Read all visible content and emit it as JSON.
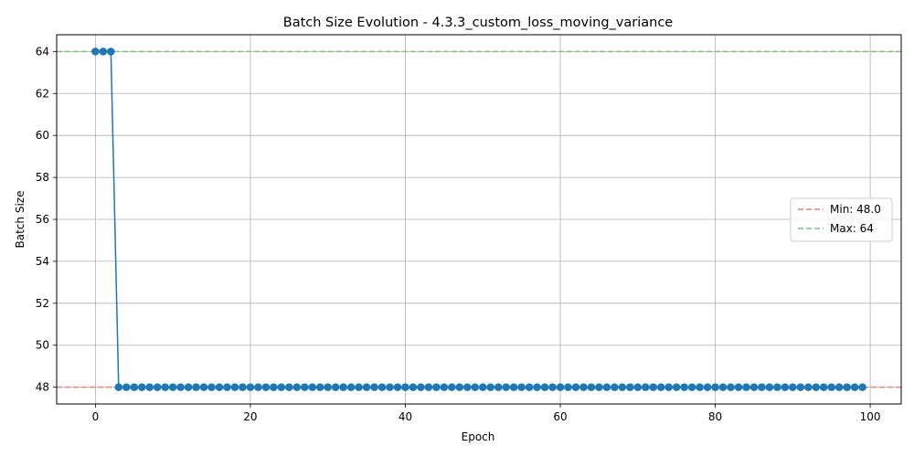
{
  "chart_data": {
    "type": "line",
    "title": "Batch Size Evolution - 4.3.3_custom_loss_moving_variance",
    "xlabel": "Epoch",
    "ylabel": "Batch Size",
    "xlim": [
      -5,
      104
    ],
    "ylim": [
      47.2,
      64.8
    ],
    "xticks": [
      0,
      20,
      40,
      60,
      80,
      100
    ],
    "yticks": [
      48,
      50,
      52,
      54,
      56,
      58,
      60,
      62,
      64
    ],
    "grid": true,
    "legend_position": "center-right",
    "series": [
      {
        "color": "#1f77b4",
        "x": [
          0,
          1,
          2,
          3,
          4,
          5,
          6,
          7,
          8,
          9,
          10,
          11,
          12,
          13,
          14,
          15,
          16,
          17,
          18,
          19,
          20,
          21,
          22,
          23,
          24,
          25,
          26,
          27,
          28,
          29,
          30,
          31,
          32,
          33,
          34,
          35,
          36,
          37,
          38,
          39,
          40,
          41,
          42,
          43,
          44,
          45,
          46,
          47,
          48,
          49,
          50,
          51,
          52,
          53,
          54,
          55,
          56,
          57,
          58,
          59,
          60,
          61,
          62,
          63,
          64,
          65,
          66,
          67,
          68,
          69,
          70,
          71,
          72,
          73,
          74,
          75,
          76,
          77,
          78,
          79,
          80,
          81,
          82,
          83,
          84,
          85,
          86,
          87,
          88,
          89,
          90,
          91,
          92,
          93,
          94,
          95,
          96,
          97,
          98,
          99
        ],
        "values": [
          64,
          64,
          64,
          48,
          48,
          48,
          48,
          48,
          48,
          48,
          48,
          48,
          48,
          48,
          48,
          48,
          48,
          48,
          48,
          48,
          48,
          48,
          48,
          48,
          48,
          48,
          48,
          48,
          48,
          48,
          48,
          48,
          48,
          48,
          48,
          48,
          48,
          48,
          48,
          48,
          48,
          48,
          48,
          48,
          48,
          48,
          48,
          48,
          48,
          48,
          48,
          48,
          48,
          48,
          48,
          48,
          48,
          48,
          48,
          48,
          48,
          48,
          48,
          48,
          48,
          48,
          48,
          48,
          48,
          48,
          48,
          48,
          48,
          48,
          48,
          48,
          48,
          48,
          48,
          48,
          48,
          48,
          48,
          48,
          48,
          48,
          48,
          48,
          48,
          48,
          48,
          48,
          48,
          48,
          48,
          48,
          48,
          48,
          48,
          48
        ]
      }
    ],
    "reference_lines": [
      {
        "name": "Min: 48.0",
        "y": 48,
        "color": "#e8817f"
      },
      {
        "name": "Max: 64",
        "y": 64,
        "color": "#83bf83"
      }
    ]
  }
}
